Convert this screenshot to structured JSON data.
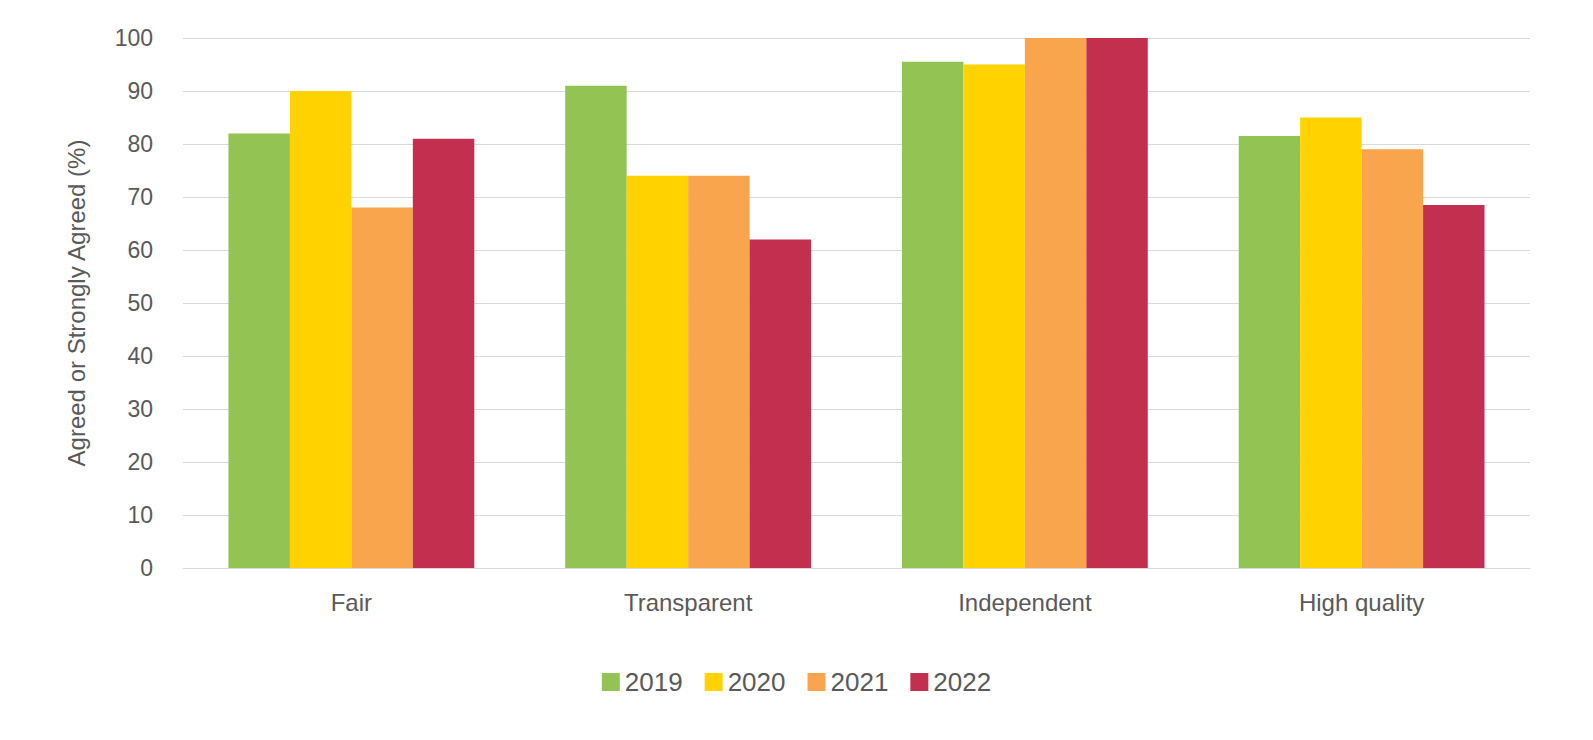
{
  "chart_data": {
    "type": "bar",
    "y_label": "Agreed or Strongly Agreed (%)",
    "categories": [
      "Fair",
      "Transparent",
      "Independent",
      "High quality"
    ],
    "series": [
      {
        "name": "2019",
        "color": "#92c353",
        "values": [
          82,
          91,
          95.5,
          81.5
        ]
      },
      {
        "name": "2020",
        "color": "#ffd200",
        "values": [
          90,
          74,
          95,
          85
        ]
      },
      {
        "name": "2021",
        "color": "#f8a54d",
        "values": [
          68,
          74,
          100,
          79
        ]
      },
      {
        "name": "2022",
        "color": "#c3304f",
        "values": [
          81,
          62,
          100,
          68.5
        ]
      }
    ],
    "ylim": [
      0,
      100
    ],
    "yticks": [
      0,
      10,
      20,
      30,
      40,
      50,
      60,
      70,
      80,
      90,
      100
    ],
    "grid": true,
    "legend": "bottom"
  }
}
